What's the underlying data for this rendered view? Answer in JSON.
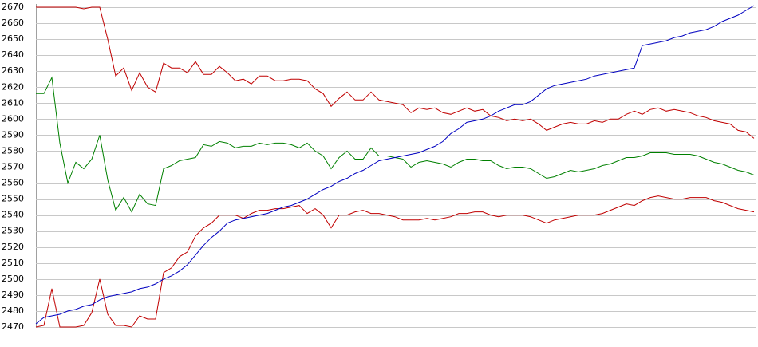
{
  "chart_data": {
    "type": "line",
    "ylim": [
      2470,
      2670
    ],
    "yticks": [
      2470,
      2480,
      2490,
      2500,
      2510,
      2520,
      2530,
      2540,
      2550,
      2560,
      2570,
      2580,
      2590,
      2600,
      2610,
      2620,
      2630,
      2640,
      2650,
      2660,
      2670
    ],
    "grid": true,
    "series": [
      {
        "color": "#c00000",
        "values": [
          2670,
          2670,
          2670,
          2670,
          2670,
          2670,
          2669,
          2670,
          2670,
          2650,
          2627,
          2632,
          2618,
          2629,
          2620,
          2617,
          2635,
          2632,
          2632,
          2629,
          2636,
          2628,
          2628,
          2633,
          2629,
          2624,
          2625,
          2622,
          2627,
          2627,
          2624,
          2624,
          2625,
          2625,
          2624,
          2619,
          2616,
          2608,
          2613,
          2617,
          2612,
          2612,
          2617,
          2612,
          2611,
          2610,
          2609,
          2604,
          2607,
          2606,
          2607,
          2604,
          2603,
          2605,
          2607,
          2605,
          2606,
          2602,
          2601,
          2599,
          2600,
          2599,
          2600,
          2597,
          2593,
          2595,
          2597,
          2598,
          2597,
          2597,
          2599,
          2598,
          2600,
          2600,
          2603,
          2605,
          2603,
          2606,
          2607,
          2605,
          2606,
          2605,
          2604,
          2602,
          2601,
          2599,
          2598,
          2597,
          2593,
          2592,
          2588
        ]
      },
      {
        "color": "#008000",
        "values": [
          2616,
          2616,
          2626,
          2585,
          2560,
          2573,
          2569,
          2575,
          2590,
          2562,
          2543,
          2551,
          2542,
          2553,
          2547,
          2546,
          2569,
          2571,
          2574,
          2575,
          2576,
          2584,
          2583,
          2586,
          2585,
          2582,
          2583,
          2583,
          2585,
          2584,
          2585,
          2585,
          2584,
          2582,
          2585,
          2580,
          2577,
          2569,
          2576,
          2580,
          2575,
          2575,
          2582,
          2577,
          2577,
          2576,
          2575,
          2570,
          2573,
          2574,
          2573,
          2572,
          2570,
          2573,
          2575,
          2575,
          2574,
          2574,
          2571,
          2569,
          2570,
          2570,
          2569,
          2566,
          2563,
          2564,
          2566,
          2568,
          2567,
          2568,
          2569,
          2571,
          2572,
          2574,
          2576,
          2576,
          2577,
          2579,
          2579,
          2579,
          2578,
          2578,
          2578,
          2577,
          2575,
          2573,
          2572,
          2570,
          2568,
          2567,
          2565
        ]
      },
      {
        "color": "#c00000",
        "values": [
          2470,
          2471,
          2494,
          2470,
          2470,
          2470,
          2471,
          2479,
          2500,
          2478,
          2471,
          2471,
          2470,
          2477,
          2475,
          2475,
          2504,
          2507,
          2514,
          2517,
          2527,
          2532,
          2535,
          2540,
          2540,
          2540,
          2538,
          2541,
          2543,
          2543,
          2544,
          2544,
          2545,
          2546,
          2541,
          2544,
          2540,
          2532,
          2540,
          2540,
          2542,
          2543,
          2541,
          2541,
          2540,
          2539,
          2537,
          2537,
          2537,
          2538,
          2537,
          2538,
          2539,
          2541,
          2541,
          2542,
          2542,
          2540,
          2539,
          2540,
          2540,
          2540,
          2539,
          2537,
          2535,
          2537,
          2538,
          2539,
          2540,
          2540,
          2540,
          2541,
          2543,
          2545,
          2547,
          2546,
          2549,
          2551,
          2552,
          2551,
          2550,
          2550,
          2551,
          2551,
          2551,
          2549,
          2548,
          2546,
          2544,
          2543,
          2542
        ]
      },
      {
        "color": "#0000c0",
        "values": [
          2472,
          2476,
          2477,
          2478,
          2480,
          2481,
          2483,
          2484,
          2487,
          2489,
          2490,
          2491,
          2492,
          2494,
          2495,
          2497,
          2500,
          2502,
          2505,
          2509,
          2515,
          2521,
          2526,
          2530,
          2535,
          2537,
          2538,
          2539,
          2540,
          2541,
          2543,
          2545,
          2546,
          2548,
          2550,
          2553,
          2556,
          2558,
          2561,
          2563,
          2566,
          2568,
          2571,
          2574,
          2575,
          2576,
          2577,
          2578,
          2579,
          2581,
          2583,
          2586,
          2591,
          2594,
          2598,
          2599,
          2600,
          2602,
          2605,
          2607,
          2609,
          2609,
          2611,
          2615,
          2619,
          2621,
          2622,
          2623,
          2624,
          2625,
          2627,
          2628,
          2629,
          2630,
          2631,
          2632,
          2646,
          2647,
          2648,
          2649,
          2651,
          2652,
          2654,
          2655,
          2656,
          2658,
          2661,
          2663,
          2665,
          2668,
          2671
        ]
      }
    ]
  }
}
